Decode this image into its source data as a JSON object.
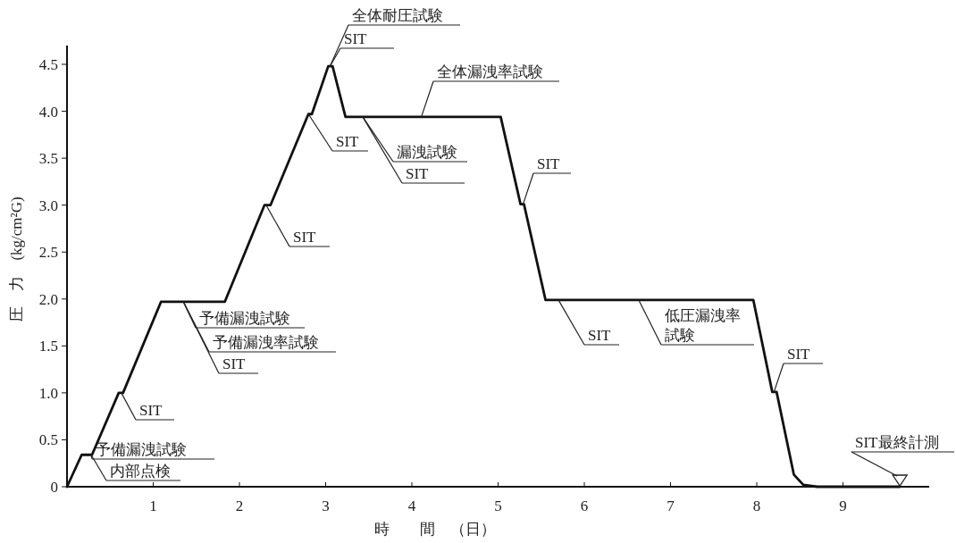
{
  "chart_data": {
    "type": "line",
    "xlabel": "時　　間　（日）",
    "ylabel": "圧　力　(kg/cm²G)",
    "xlim": [
      0,
      10
    ],
    "ylim": [
      0,
      4.7
    ],
    "xticks": [
      1,
      2,
      3,
      4,
      5,
      6,
      7,
      8,
      9
    ],
    "yticks": [
      0,
      0.5,
      {
        "value": 1,
        "label": "1.0"
      },
      1.5,
      {
        "value": 2,
        "label": "2.0"
      },
      2.5,
      {
        "value": 3,
        "label": "3.0"
      },
      3.5,
      {
        "value": 4,
        "label": "4.0"
      },
      4.5
    ],
    "series": [
      {
        "color": "#111111",
        "x": [
          0,
          0.17,
          0.29,
          0.6,
          0.65,
          1.09,
          1.83,
          2.29,
          2.36,
          2.8,
          2.84,
          3.03,
          3.08,
          3.23,
          5.03,
          5.26,
          5.3,
          5.55,
          7.96,
          8.18,
          8.23,
          8.43,
          8.54,
          8.7,
          9.66
        ],
        "values": [
          0,
          0.34,
          0.34,
          1.0,
          1.0,
          1.97,
          1.97,
          3.0,
          3.0,
          3.97,
          3.97,
          4.48,
          4.48,
          3.94,
          3.94,
          3.01,
          3.01,
          1.99,
          1.99,
          1.01,
          1.01,
          0.13,
          0.02,
          0,
          0
        ]
      }
    ],
    "annotations": [
      {
        "text": "全体耐圧試験",
        "x": 3.05,
        "y": 4.48
      },
      {
        "text": "SIT",
        "x": 3.05,
        "y": 4.48
      },
      {
        "text": "全体漏洩率試験",
        "x": 4.11,
        "y": 3.94
      },
      {
        "text": "SIT",
        "x": 2.8,
        "y": 3.97
      },
      {
        "text": "漏洩試験",
        "x": 3.43,
        "y": 3.94
      },
      {
        "text": "SIT",
        "x": 3.43,
        "y": 3.94
      },
      {
        "text": "SIT",
        "x": 2.31,
        "y": 3.0
      },
      {
        "text": "予備漏洩試験",
        "x": 1.35,
        "y": 1.97
      },
      {
        "text": "予備漏洩率試験",
        "x": 1.35,
        "y": 1.97
      },
      {
        "text": "SIT",
        "x": 1.35,
        "y": 1.97
      },
      {
        "text": "SIT",
        "x": 0.63,
        "y": 1.0
      },
      {
        "text": "予備漏洩試験",
        "x": 0.28,
        "y": 0.34
      },
      {
        "text": "内部点検",
        "x": 0.28,
        "y": 0.34
      },
      {
        "text": "SIT",
        "x": 5.29,
        "y": 3.01
      },
      {
        "text": "SIT",
        "x": 5.7,
        "y": 1.99
      },
      {
        "text": "低圧漏洩率試験",
        "x": 6.63,
        "y": 1.99
      },
      {
        "text": "SIT",
        "x": 8.2,
        "y": 1.01
      },
      {
        "text": "SIT最終計測",
        "x": 9.66,
        "y": 0
      }
    ]
  }
}
